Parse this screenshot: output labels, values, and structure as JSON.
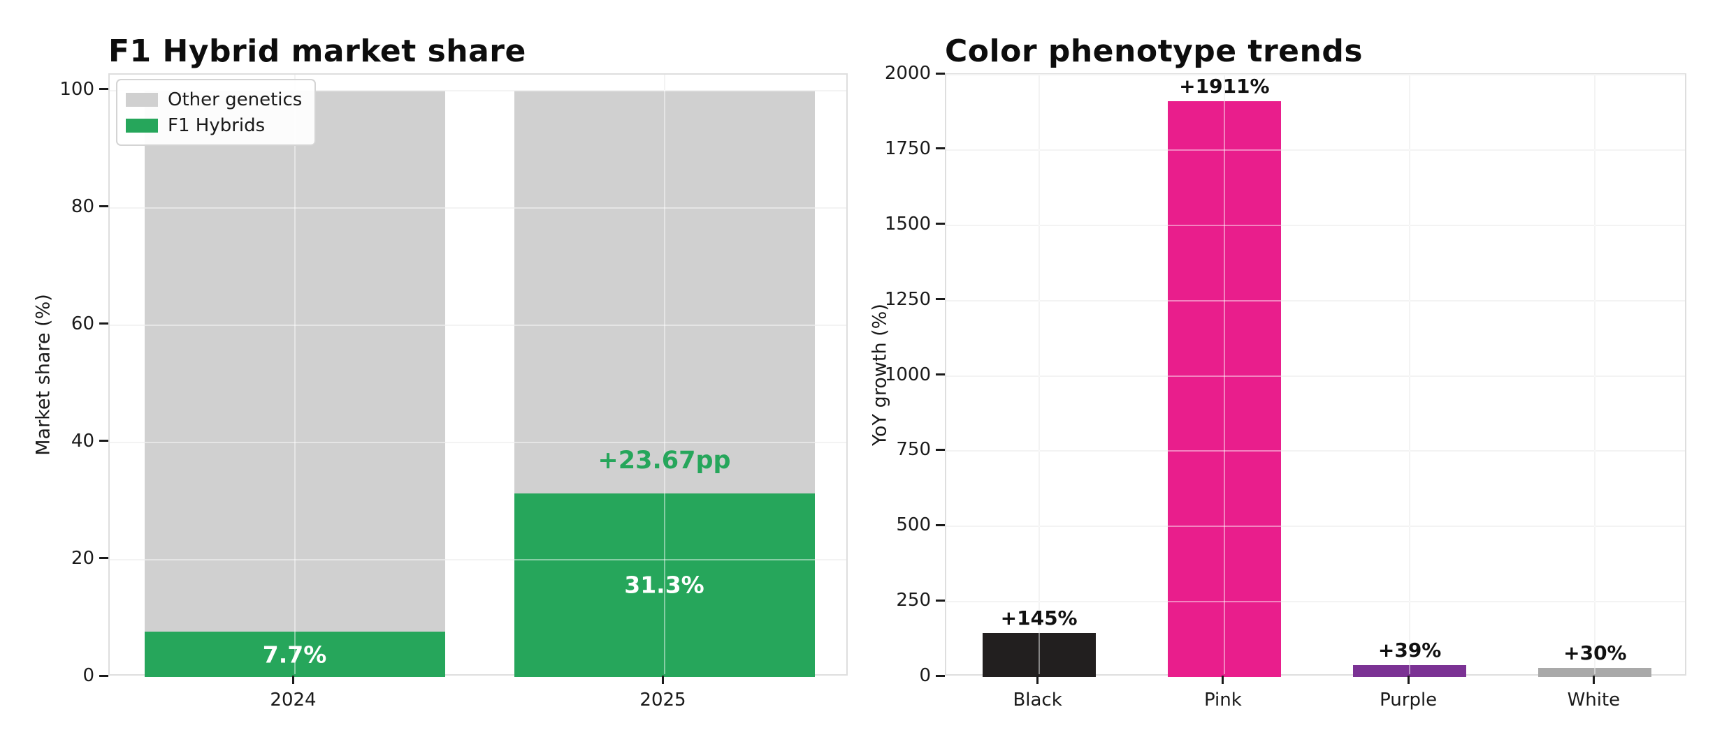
{
  "chart_data": [
    {
      "type": "bar",
      "stacked": true,
      "title": "F1 Hybrid market share",
      "xlabel": "",
      "ylabel": "Market share (%)",
      "categories": [
        "2024",
        "2025"
      ],
      "series": [
        {
          "name": "F1 Hybrids",
          "color": "#26a65b",
          "values": [
            7.7,
            31.3
          ],
          "labels": [
            "7.7%",
            "31.3%"
          ]
        },
        {
          "name": "Other genetics",
          "color": "#d0d0d0",
          "values": [
            92.3,
            68.7
          ]
        }
      ],
      "legend": {
        "position": "upper-left",
        "entries": [
          {
            "label": "Other genetics",
            "color": "#d0d0d0"
          },
          {
            "label": "F1 Hybrids",
            "color": "#26a65b"
          }
        ]
      },
      "annotation": {
        "text": "+23.67pp",
        "color": "#26a65b",
        "category": "2025"
      },
      "yticks": [
        0,
        20,
        40,
        60,
        80,
        100
      ],
      "ylim": [
        0,
        102.7
      ],
      "grid": true
    },
    {
      "type": "bar",
      "stacked": false,
      "title": "Color phenotype trends",
      "xlabel": "",
      "ylabel": "YoY growth (%)",
      "categories": [
        "Black",
        "Pink",
        "Purple",
        "White"
      ],
      "values": [
        145,
        1911,
        39,
        30
      ],
      "bar_labels": [
        "+145%",
        "+1911%",
        "+39%",
        "+30%"
      ],
      "bar_colors": [
        "#221f1f",
        "#e91e8c",
        "#7b3294",
        "#a9a9a9"
      ],
      "yticks": [
        0,
        250,
        500,
        750,
        1000,
        1250,
        1500,
        1750,
        2000
      ],
      "ylim": [
        0,
        2000
      ],
      "grid": true
    }
  ]
}
